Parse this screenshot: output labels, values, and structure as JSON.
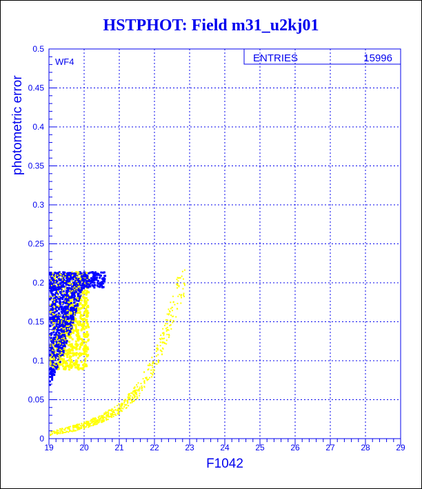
{
  "chart_data": {
    "type": "scatter",
    "title": "HSTPHOT: Field m31_u2kj01",
    "xlabel": "F1042",
    "ylabel": "photometric error",
    "xlim": [
      19,
      29
    ],
    "ylim": [
      0,
      0.5
    ],
    "xticks": [
      "19",
      "20",
      "21",
      "22",
      "23",
      "24",
      "25",
      "26",
      "27",
      "28",
      "29"
    ],
    "yticks": [
      "0",
      "0.05",
      "0.1",
      "0.15",
      "0.2",
      "0.25",
      "0.3",
      "0.35",
      "0.4",
      "0.45",
      "0.5"
    ],
    "grid": true,
    "panel_label": "WF4",
    "stats_box": {
      "label": "ENTRIES",
      "value": "15996"
    },
    "series": [
      {
        "name": "blue band",
        "color": "#0000ff",
        "lower_edge": [
          [
            19,
            0.055
          ],
          [
            19.5,
            0.078
          ],
          [
            20,
            0.112
          ],
          [
            20.3,
            0.15
          ],
          [
            20.5,
            0.19
          ],
          [
            20.6,
            0.215
          ]
        ],
        "upper_left_edge": [
          [
            19,
            0.09
          ],
          [
            19.3,
            0.12
          ],
          [
            19.6,
            0.16
          ],
          [
            19.9,
            0.21
          ],
          [
            20.0,
            0.215
          ]
        ],
        "y_max": 0.215
      },
      {
        "name": "yellow band",
        "color": "#ffff00",
        "region": {
          "x": [
            19,
            20.1
          ],
          "y": [
            0.09,
            0.215
          ]
        },
        "curve": [
          [
            19,
            0.008
          ],
          [
            19.5,
            0.012
          ],
          [
            20,
            0.018
          ],
          [
            20.5,
            0.027
          ],
          [
            21,
            0.04
          ],
          [
            21.5,
            0.062
          ],
          [
            22,
            0.1
          ],
          [
            22.4,
            0.15
          ],
          [
            22.8,
            0.21
          ]
        ]
      }
    ]
  }
}
